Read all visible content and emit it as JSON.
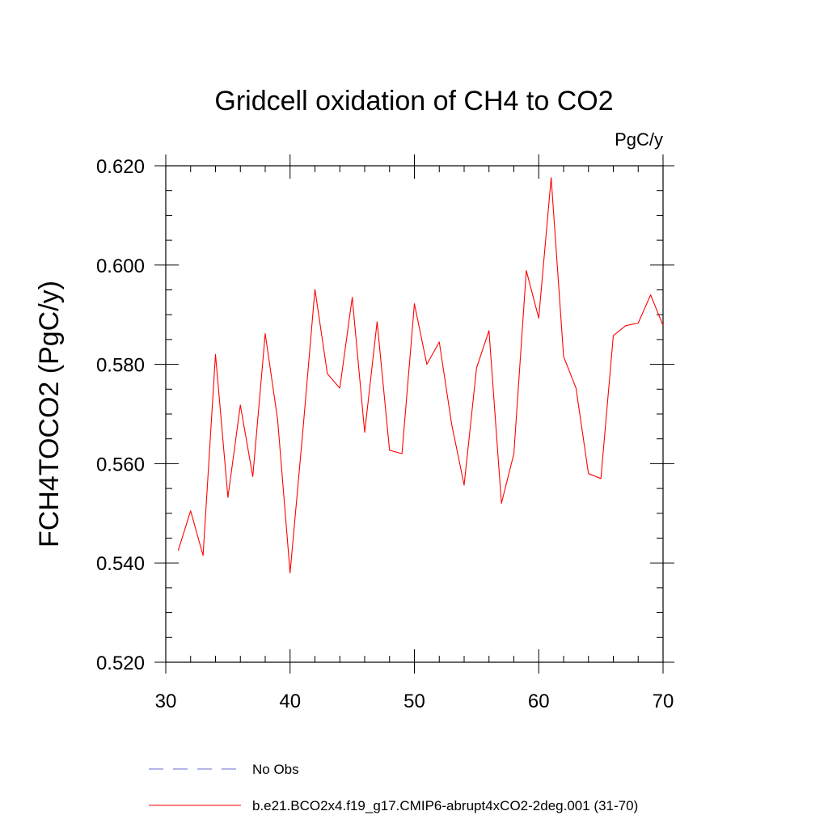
{
  "chart_data": {
    "type": "line",
    "title": "Gridcell oxidation of CH4 to CO2",
    "units_label": "PgC/y",
    "xlabel": "",
    "ylabel": "FCH4TOCO2  (PgC/y)",
    "xlim": [
      30,
      70
    ],
    "ylim": [
      0.52,
      0.62
    ],
    "x_ticks": [
      30,
      40,
      50,
      60,
      70
    ],
    "x_tick_labels": [
      "30",
      "40",
      "50",
      "60",
      "70"
    ],
    "y_ticks": [
      0.52,
      0.54,
      0.56,
      0.58,
      0.6,
      0.62
    ],
    "y_tick_labels": [
      "0.520",
      "0.540",
      "0.560",
      "0.580",
      "0.600",
      "0.620"
    ],
    "grid": false,
    "series": [
      {
        "name": "b.e21.BCO2x4.f19_g17.CMIP6-abrupt4xCO2-2deg.001 (31-70)",
        "color": "#ff0000",
        "style": "solid",
        "x": [
          31,
          32,
          33,
          34,
          35,
          36,
          37,
          38,
          39,
          40,
          41,
          42,
          43,
          44,
          45,
          46,
          47,
          48,
          49,
          50,
          51,
          52,
          53,
          54,
          55,
          56,
          57,
          58,
          59,
          60,
          61,
          62,
          63,
          64,
          65,
          66,
          67,
          68,
          69,
          70
        ],
        "values": [
          0.5425,
          0.5505,
          0.5415,
          0.582,
          0.5532,
          0.5718,
          0.5574,
          0.5862,
          0.5688,
          0.538,
          0.5658,
          0.5951,
          0.5781,
          0.5752,
          0.5935,
          0.5663,
          0.5886,
          0.5627,
          0.562,
          0.5922,
          0.58,
          0.5845,
          0.5679,
          0.5557,
          0.5793,
          0.5868,
          0.552,
          0.562,
          0.5989,
          0.5893,
          0.6176,
          0.5816,
          0.5752,
          0.558,
          0.557,
          0.5858,
          0.5878,
          0.5883,
          0.594,
          0.5878
        ]
      }
    ],
    "legend": [
      {
        "label": "No Obs",
        "color": "#6a6ad0",
        "style": "dashed"
      },
      {
        "label": "b.e21.BCO2x4.f19_g17.CMIP6-abrupt4xCO2-2deg.001 (31-70)",
        "color": "#ff0000",
        "style": "solid"
      }
    ],
    "legend_position": "bottom"
  }
}
